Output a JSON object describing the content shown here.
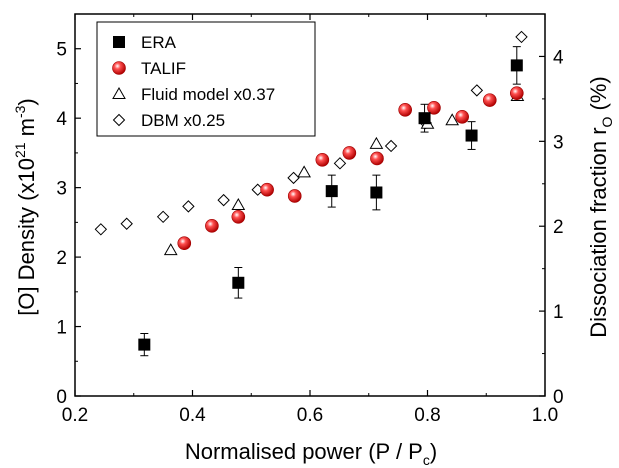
{
  "chart_data": {
    "type": "scatter",
    "xlabel": "Normalised power (P / P",
    "xlabel_sub": "c",
    "xlabel_end": ")",
    "ylabel": "[O] Density (x10",
    "ylabel_sup": "21",
    "ylabel_mid": " m",
    "ylabel_sup2": "-3",
    "ylabel_end": ")",
    "y2label": "Dissociation fraction r",
    "y2label_sub": "O",
    "y2label_end": " (%)",
    "xlim": [
      0.2,
      1.0
    ],
    "ylim": [
      0,
      5.5
    ],
    "y2lim": [
      0,
      4.5
    ],
    "xticks": [
      "0.2",
      "0.4",
      "0.6",
      "0.8",
      "1.0"
    ],
    "yticks": [
      "0",
      "1",
      "2",
      "3",
      "4",
      "5"
    ],
    "y2ticks": [
      "0",
      "1",
      "2",
      "3",
      "4"
    ],
    "legend_position": "top-left",
    "series": [
      {
        "name": "ERA",
        "marker": "square-filled",
        "color": "#000000",
        "points": [
          {
            "x": 0.318,
            "y": 0.74,
            "err": 0.16
          },
          {
            "x": 0.478,
            "y": 1.63,
            "err": 0.22
          },
          {
            "x": 0.637,
            "y": 2.95,
            "err": 0.23
          },
          {
            "x": 0.713,
            "y": 2.93,
            "err": 0.25
          },
          {
            "x": 0.795,
            "y": 4.0,
            "err": 0.2
          },
          {
            "x": 0.875,
            "y": 3.75,
            "err": 0.2
          },
          {
            "x": 0.952,
            "y": 4.76,
            "err": 0.27
          }
        ]
      },
      {
        "name": "TALIF",
        "marker": "circle-red",
        "color": "#e01010",
        "points": [
          {
            "x": 0.386,
            "y": 2.2
          },
          {
            "x": 0.433,
            "y": 2.45
          },
          {
            "x": 0.478,
            "y": 2.58
          },
          {
            "x": 0.527,
            "y": 2.97
          },
          {
            "x": 0.574,
            "y": 2.88
          },
          {
            "x": 0.621,
            "y": 3.4
          },
          {
            "x": 0.667,
            "y": 3.5
          },
          {
            "x": 0.714,
            "y": 3.42
          },
          {
            "x": 0.762,
            "y": 4.12
          },
          {
            "x": 0.811,
            "y": 4.15
          },
          {
            "x": 0.859,
            "y": 4.02
          },
          {
            "x": 0.906,
            "y": 4.26
          },
          {
            "x": 0.952,
            "y": 4.36
          }
        ]
      },
      {
        "name": "Fluid model x0.37",
        "marker": "triangle-open",
        "color": "#000000",
        "points": [
          {
            "x": 0.363,
            "y": 2.1
          },
          {
            "x": 0.478,
            "y": 2.75
          },
          {
            "x": 0.59,
            "y": 3.22
          },
          {
            "x": 0.713,
            "y": 3.63
          },
          {
            "x": 0.8,
            "y": 3.92
          },
          {
            "x": 0.842,
            "y": 3.97
          },
          {
            "x": 0.953,
            "y": 4.32
          }
        ]
      },
      {
        "name": "DBM x0.25",
        "marker": "diamond-open",
        "color": "#000000",
        "points": [
          {
            "x": 0.244,
            "y": 2.4
          },
          {
            "x": 0.288,
            "y": 2.48
          },
          {
            "x": 0.35,
            "y": 2.58
          },
          {
            "x": 0.393,
            "y": 2.73
          },
          {
            "x": 0.453,
            "y": 2.82
          },
          {
            "x": 0.511,
            "y": 2.97
          },
          {
            "x": 0.572,
            "y": 3.14
          },
          {
            "x": 0.651,
            "y": 3.35
          },
          {
            "x": 0.738,
            "y": 3.6
          },
          {
            "x": 0.797,
            "y": 3.93
          },
          {
            "x": 0.884,
            "y": 4.4
          },
          {
            "x": 0.96,
            "y": 5.17
          }
        ]
      }
    ]
  }
}
